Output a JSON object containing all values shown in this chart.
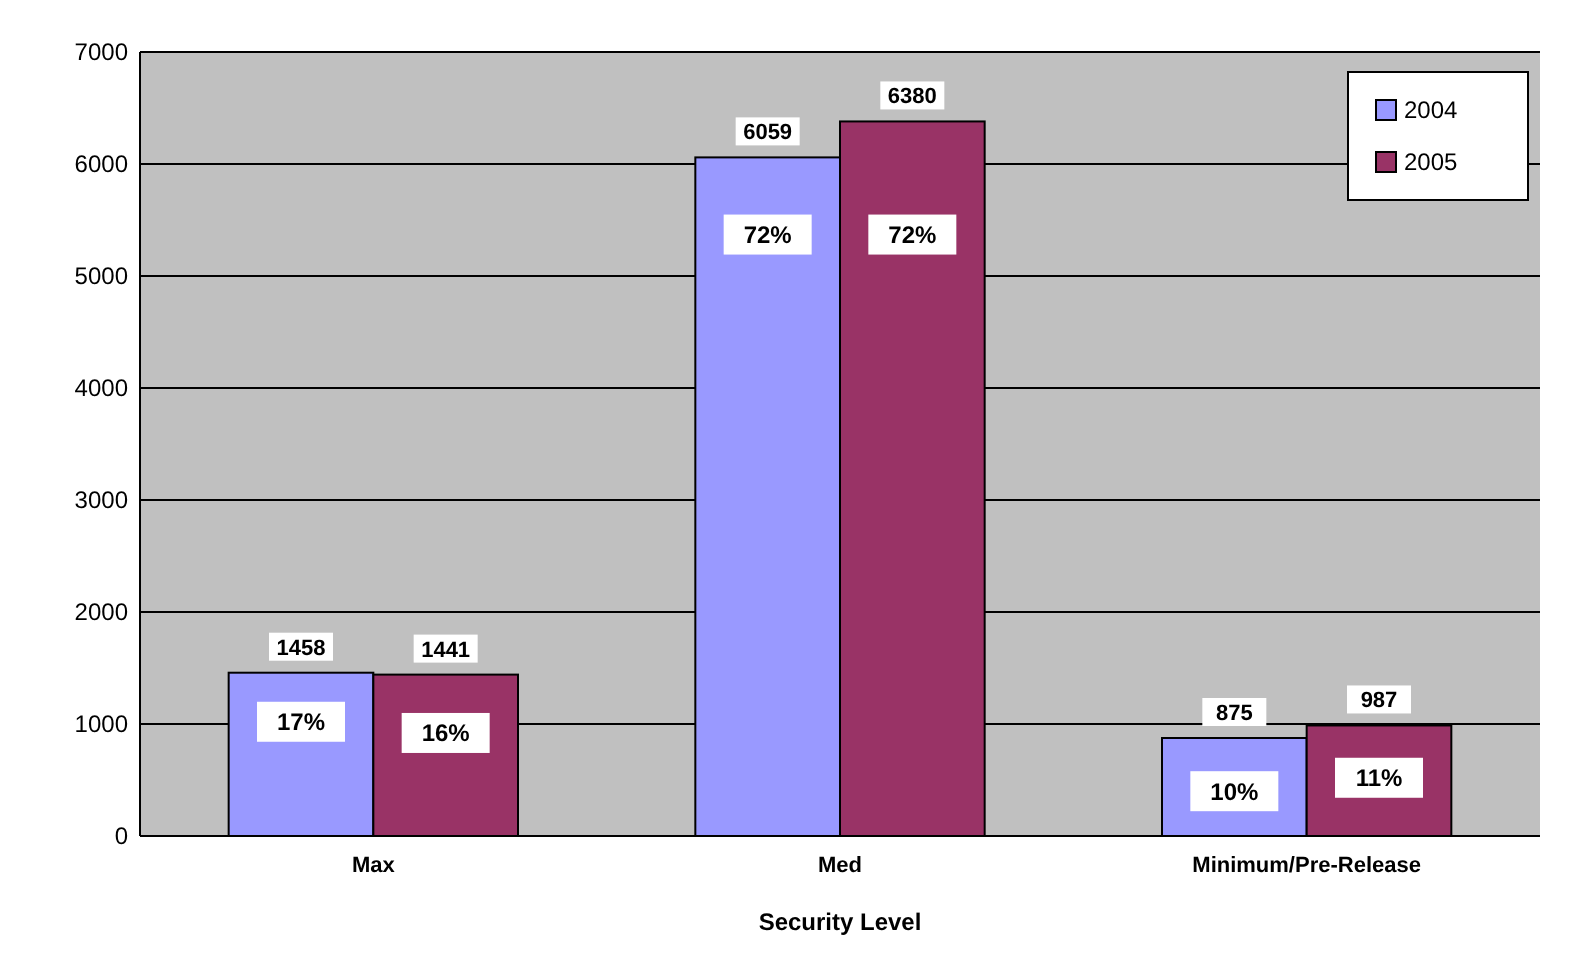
{
  "chart_data": {
    "type": "bar",
    "xlabel": "Security Level",
    "categories": [
      "Max",
      "Med",
      "Minimum/Pre-Release"
    ],
    "series": [
      {
        "name": "2004",
        "color": "#9999ff",
        "values": [
          1458,
          6059,
          875
        ]
      },
      {
        "name": "2005",
        "color": "#993366",
        "values": [
          1441,
          6380,
          987
        ]
      }
    ],
    "ylim": [
      0,
      7000
    ],
    "yticks": [
      0,
      1000,
      2000,
      3000,
      4000,
      5000,
      6000,
      7000
    ],
    "grid": "y",
    "data_labels": true,
    "legend": "top right",
    "annotations": [
      {
        "text": "17%",
        "x": "Max",
        "y": 1020
      },
      {
        "text": "16%",
        "x": "Max",
        "y": 920
      },
      {
        "text": "72%",
        "x": "Med",
        "y": 5370
      },
      {
        "text": "72%",
        "x": "Med",
        "y": 5370
      },
      {
        "text": "10%",
        "x": "Minimum/Pre-Release",
        "y": 400
      },
      {
        "text": "11%",
        "x": "Minimum/Pre-Release",
        "y": 520
      }
    ]
  }
}
